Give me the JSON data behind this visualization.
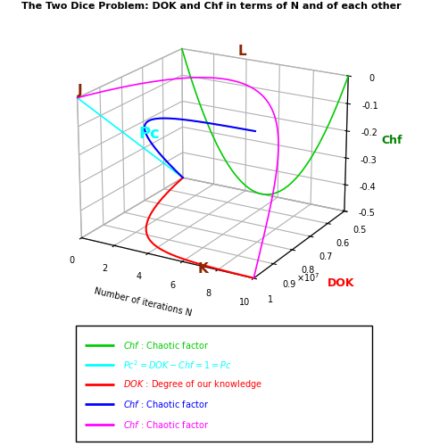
{
  "title": "The Two Dice Problem: DOK and Chf in terms of N and of each other",
  "xlabel": "Number of iterations N",
  "ylabel": "DOK",
  "zlabel": "Chf",
  "N_max": 100000000.0,
  "DOK_min": 0.5,
  "DOK_max": 1.0,
  "Chf_min": -0.5,
  "Chf_max": 0.0,
  "x_ticks": [
    0,
    20000000.0,
    40000000.0,
    60000000.0,
    80000000.0,
    100000000.0
  ],
  "x_ticklabels": [
    "0",
    "2",
    "4",
    "6",
    "8",
    "10"
  ],
  "y_ticks": [
    0.5,
    0.6,
    0.7,
    0.8,
    0.9,
    1.0
  ],
  "y_ticklabels": [
    "0.5",
    "0.6",
    "0.7",
    "0.8",
    "0.9",
    "1"
  ],
  "z_ticks": [
    -0.5,
    -0.4,
    -0.3,
    -0.2,
    -0.1,
    0.0
  ],
  "z_ticklabels": [
    "-0.5",
    "-0.4",
    "-0.3",
    "-0.2",
    "-0.1",
    "0"
  ],
  "elev": 20,
  "azim": -60,
  "point_J": {
    "label": "J",
    "N": 0,
    "DOK": 1.0,
    "Chf": 0.0,
    "color": "#8B2500"
  },
  "point_K": {
    "label": "K",
    "N": 70000000.0,
    "DOK": 1.0,
    "Chf": -0.5,
    "color": "#8B2500"
  },
  "point_L": {
    "label": "L",
    "N": 35000000.0,
    "DOK": 0.5,
    "Chf": 0.0,
    "color": "#8B2500"
  },
  "Pc_label": {
    "text": "Pc",
    "color": "cyan"
  },
  "curve_green_color": "#00CC00",
  "curve_cyan_color": "cyan",
  "curve_red_color": "red",
  "curve_blue_color": "blue",
  "curve_magenta_color": "magenta",
  "curve_orange_color": "#CC7722",
  "legend_colors": [
    "#00CC00",
    "cyan",
    "red",
    "blue",
    "magenta"
  ],
  "legend_texts": [
    "Chf : Chaotic factor",
    "Pc² = DOK – Chf = 1 = Pc",
    "DOK : Degree of our knowledge",
    "Chf : Chaotic factor",
    "Chf : Chaotic factor"
  ],
  "legend_text_colors": [
    "#00CC00",
    "cyan",
    "red",
    "blue",
    "magenta"
  ],
  "scale_label": "×10⁷",
  "ylabel_color": "red",
  "zlabel_color": "green"
}
